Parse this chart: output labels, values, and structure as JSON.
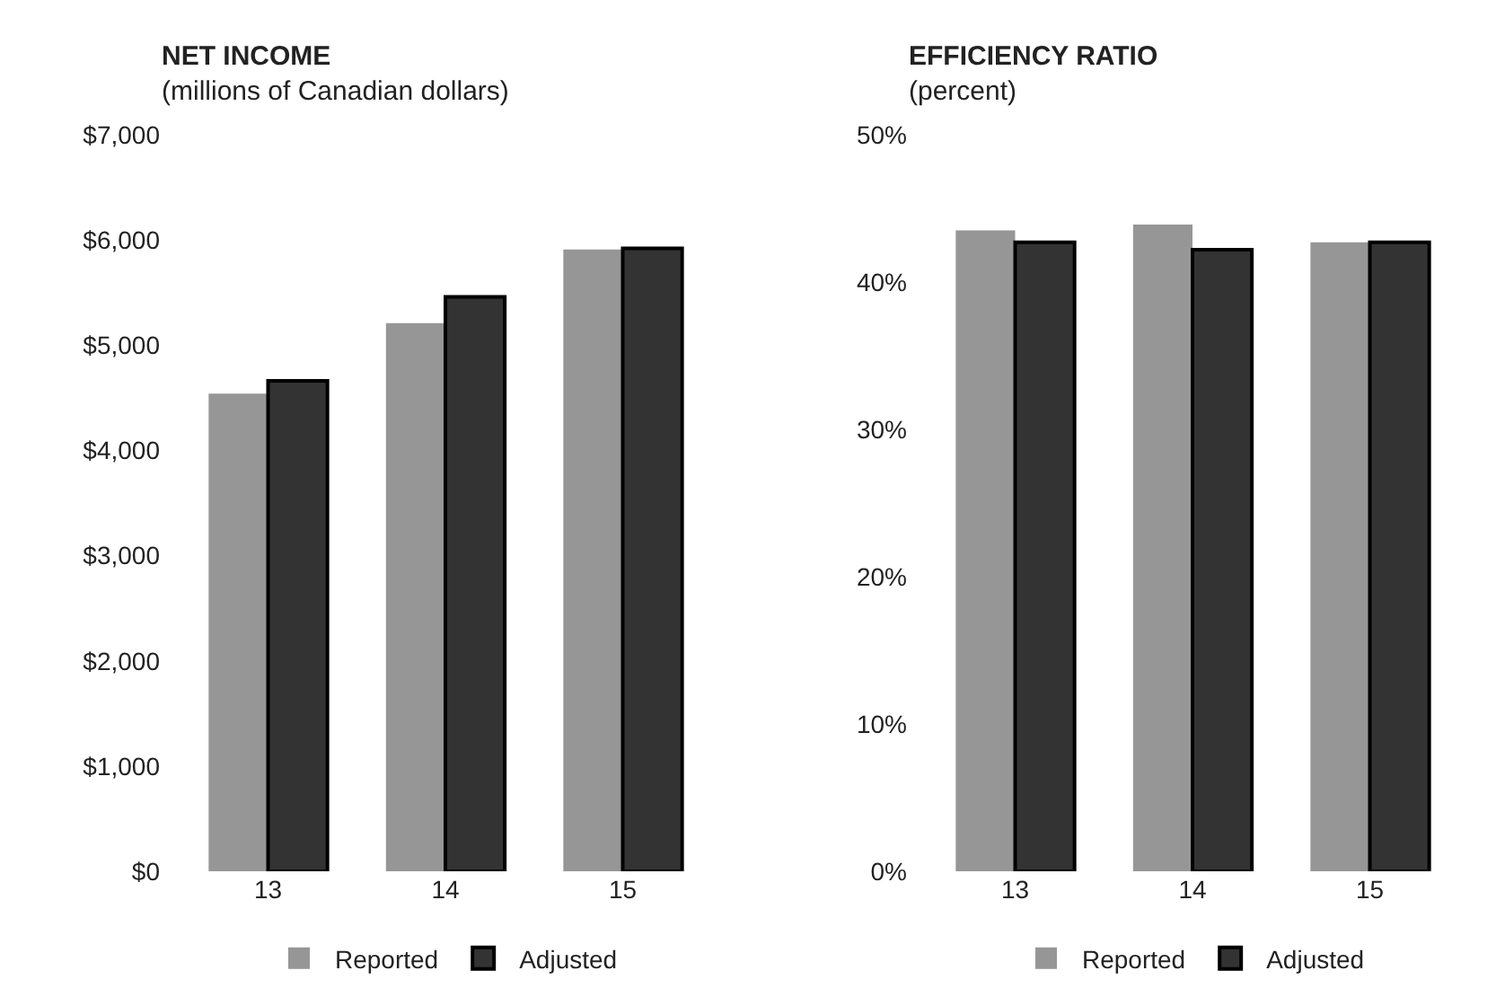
{
  "chart_data": [
    {
      "type": "bar",
      "title": "NET INCOME",
      "subtitle": "(millions of Canadian dollars)",
      "categories": [
        "13",
        "14",
        "15"
      ],
      "series": [
        {
          "name": "Reported",
          "color": "#969696",
          "values": [
            4540,
            5210,
            5910
          ]
        },
        {
          "name": "Adjusted",
          "color": "#333333",
          "values": [
            4660,
            5460,
            5920
          ]
        }
      ],
      "ylim": [
        0,
        7000
      ],
      "yticks": [
        {
          "value": 0,
          "label": "$0"
        },
        {
          "value": 1000,
          "label": "$1,000"
        },
        {
          "value": 2000,
          "label": "$2,000"
        },
        {
          "value": 3000,
          "label": "$3,000"
        },
        {
          "value": 4000,
          "label": "$4,000"
        },
        {
          "value": 5000,
          "label": "$5,000"
        },
        {
          "value": 6000,
          "label": "$6,000"
        },
        {
          "value": 7000,
          "label": "$7,000"
        }
      ],
      "grid": false,
      "legend": "bottom"
    },
    {
      "type": "bar",
      "title": "EFFICIENCY RATIO",
      "subtitle": "(percent)",
      "categories": [
        "13",
        "14",
        "15"
      ],
      "series": [
        {
          "name": "Reported",
          "color": "#969696",
          "values": [
            43.5,
            43.9,
            42.7
          ]
        },
        {
          "name": "Adjusted",
          "color": "#333333",
          "values": [
            42.7,
            42.2,
            42.7
          ]
        }
      ],
      "ylim": [
        0,
        50
      ],
      "yticks": [
        {
          "value": 0,
          "label": "0%"
        },
        {
          "value": 10,
          "label": "10%"
        },
        {
          "value": 20,
          "label": "20%"
        },
        {
          "value": 30,
          "label": "30%"
        },
        {
          "value": 40,
          "label": "40%"
        },
        {
          "value": 50,
          "label": "50%"
        }
      ],
      "grid": false,
      "legend": "bottom"
    }
  ]
}
